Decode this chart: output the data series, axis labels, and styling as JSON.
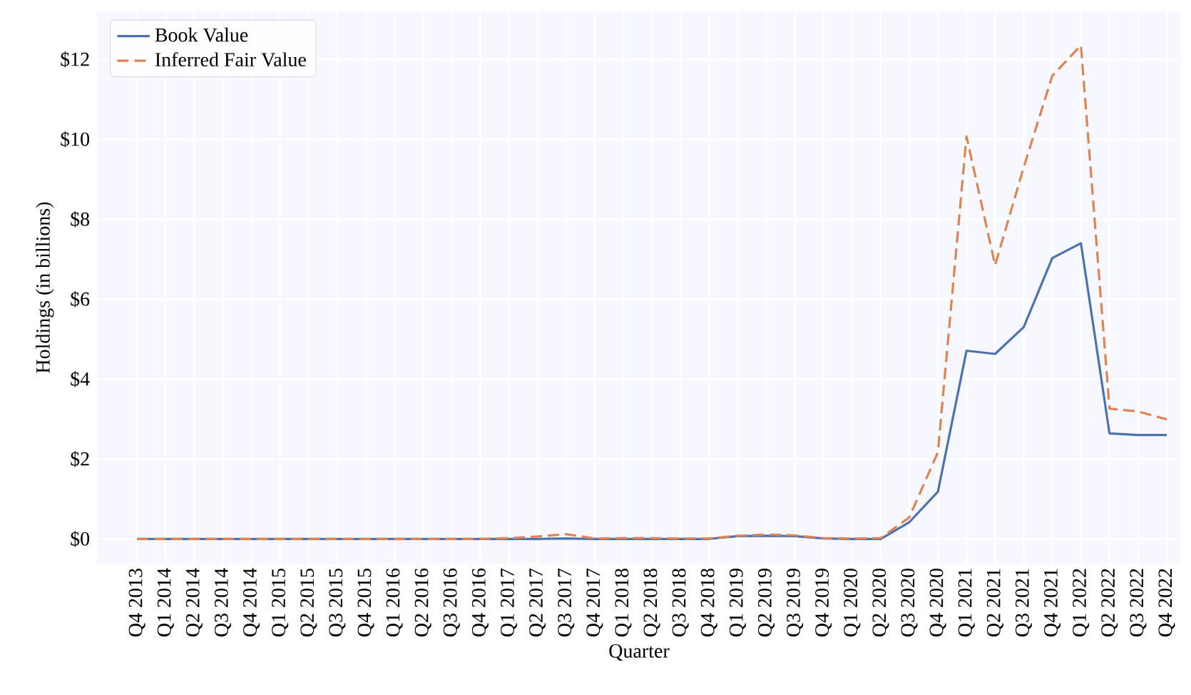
{
  "chart_data": {
    "type": "line",
    "xlabel": "Quarter",
    "ylabel": "Holdings (in billions)",
    "categories": [
      "Q4 2013",
      "Q1 2014",
      "Q2 2014",
      "Q3 2014",
      "Q4 2014",
      "Q1 2015",
      "Q2 2015",
      "Q3 2015",
      "Q4 2015",
      "Q1 2016",
      "Q2 2016",
      "Q3 2016",
      "Q4 2016",
      "Q1 2017",
      "Q2 2017",
      "Q3 2017",
      "Q4 2017",
      "Q1 2018",
      "Q2 2018",
      "Q3 2018",
      "Q4 2018",
      "Q1 2019",
      "Q2 2019",
      "Q3 2019",
      "Q4 2019",
      "Q1 2020",
      "Q2 2020",
      "Q3 2020",
      "Q4 2020",
      "Q1 2021",
      "Q2 2021",
      "Q3 2021",
      "Q4 2021",
      "Q1 2022",
      "Q2 2022",
      "Q3 2022",
      "Q4 2022"
    ],
    "series": [
      {
        "name": "Book Value",
        "color": "#4c72b0",
        "line_style": "solid",
        "values": [
          0,
          0,
          0,
          0,
          0,
          0,
          0,
          0,
          0,
          0,
          0,
          0,
          0,
          0,
          0,
          0.01,
          0,
          0,
          0,
          0,
          0,
          0.07,
          0.08,
          0.07,
          0.01,
          0,
          0,
          0.42,
          1.18,
          4.71,
          4.63,
          5.3,
          7.03,
          7.4,
          2.64,
          2.6,
          2.6
        ]
      },
      {
        "name": "Inferred Fair Value",
        "color": "#dd8452",
        "line_style": "dashed",
        "values": [
          0,
          0,
          0,
          0,
          0,
          0,
          0,
          0,
          0,
          0,
          0,
          0,
          0,
          0.02,
          0.06,
          0.12,
          0.01,
          0.02,
          0.02,
          0.01,
          0.01,
          0.08,
          0.11,
          0.09,
          0.02,
          0.01,
          0.02,
          0.54,
          2.17,
          10.07,
          6.85,
          9.3,
          11.59,
          12.35,
          3.26,
          3.19,
          2.99
        ]
      }
    ],
    "ylim": [
      -0.62,
      13.2
    ],
    "yticks": [
      {
        "value": 0,
        "label": "$0"
      },
      {
        "value": 2,
        "label": "$2"
      },
      {
        "value": 4,
        "label": "$4"
      },
      {
        "value": 6,
        "label": "$6"
      },
      {
        "value": 8,
        "label": "$8"
      },
      {
        "value": 10,
        "label": "$10"
      },
      {
        "value": 12,
        "label": "$12"
      }
    ],
    "grid": true,
    "legend": "top left",
    "marker": "none"
  }
}
